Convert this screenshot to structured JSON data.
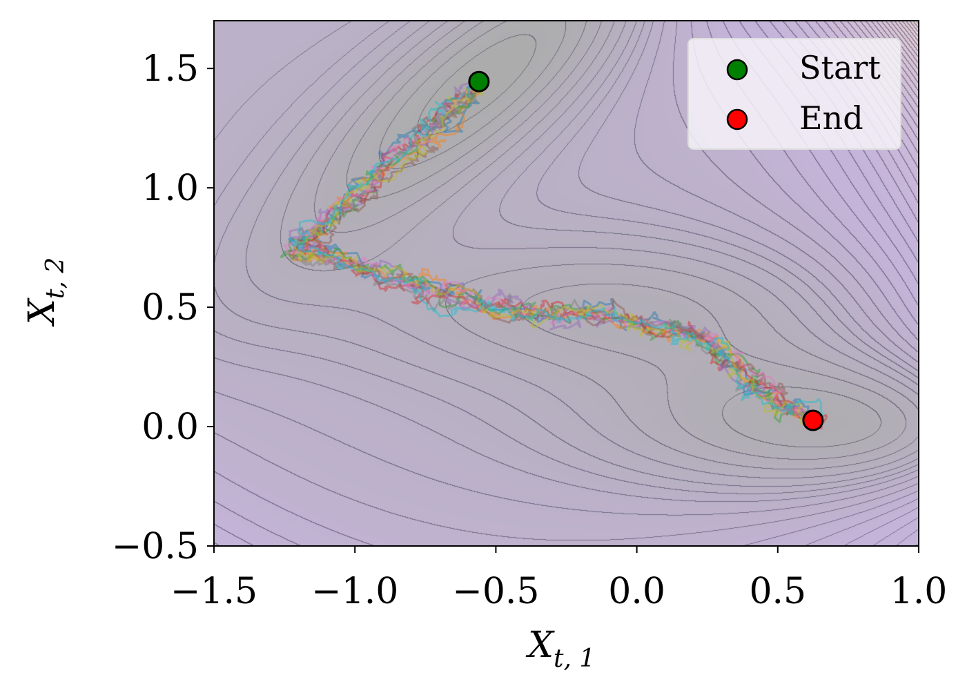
{
  "chart_data": {
    "type": "line",
    "title": "",
    "xlabel": "X",
    "xlabel_sub": "t, 1",
    "ylabel": "X",
    "ylabel_sub": "t, 2",
    "xlim": [
      -1.5,
      1.0
    ],
    "ylim": [
      -0.5,
      1.7
    ],
    "xticks": [
      -1.5,
      -1.0,
      -0.5,
      0.0,
      0.5,
      1.0
    ],
    "xtick_labels": [
      "−1.5",
      "−1.0",
      "−0.5",
      "0.0",
      "0.5",
      "1.0"
    ],
    "yticks": [
      -0.5,
      0.0,
      0.5,
      1.0,
      1.5
    ],
    "ytick_labels": [
      "−0.5",
      "0.0",
      "0.5",
      "1.0",
      "1.5"
    ],
    "background": "contour of a two-well potential energy surface",
    "trajectory_count": 10,
    "trajectory_colors": [
      "#1f77b4",
      "#ff7f0e",
      "#2ca02c",
      "#d62728",
      "#9467bd",
      "#8c564b",
      "#e377c2",
      "#7f7f7f",
      "#bcbd22",
      "#17becf"
    ],
    "trajectory_centerline": [
      [
        -0.56,
        1.44
      ],
      [
        -0.68,
        1.3
      ],
      [
        -0.8,
        1.17
      ],
      [
        -0.95,
        1.0
      ],
      [
        -1.1,
        0.85
      ],
      [
        -1.22,
        0.74
      ],
      [
        -1.05,
        0.7
      ],
      [
        -0.85,
        0.62
      ],
      [
        -0.7,
        0.55
      ],
      [
        -0.5,
        0.5
      ],
      [
        -0.3,
        0.48
      ],
      [
        -0.1,
        0.47
      ],
      [
        0.1,
        0.42
      ],
      [
        0.25,
        0.36
      ],
      [
        0.38,
        0.25
      ],
      [
        0.5,
        0.1
      ],
      [
        0.62,
        0.03
      ]
    ],
    "markers": [
      {
        "name": "Start",
        "x": -0.56,
        "y": 1.445,
        "color": "#008000"
      },
      {
        "name": "End",
        "x": 0.625,
        "y": 0.026,
        "color": "#ff0000"
      }
    ],
    "legend": {
      "placement": "top-right",
      "entries": [
        "Start",
        "End"
      ]
    }
  }
}
